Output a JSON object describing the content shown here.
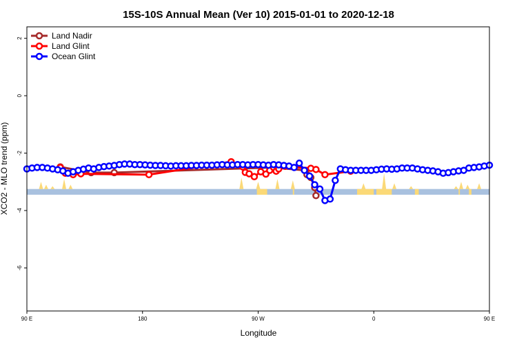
{
  "chart_data": {
    "type": "line",
    "title": "15S-10S Annual Mean (Ver 10)   2015-01-01 to 2020-12-18",
    "xlabel": "Longitude",
    "ylabel": "XCO2 - MLO trend (ppm)",
    "xlim": [
      90,
      450
    ],
    "ylim": [
      -7.5,
      2.4
    ],
    "xticks": [
      {
        "value": 90,
        "label": "90 E"
      },
      {
        "value": 180,
        "label": "180"
      },
      {
        "value": 270,
        "label": "90 W"
      },
      {
        "value": 360,
        "label": "0"
      },
      {
        "value": 450,
        "label": "90 E"
      }
    ],
    "yticks": [
      {
        "value": 2,
        "label": "2"
      },
      {
        "value": 0,
        "label": "0"
      },
      {
        "value": -2,
        "label": "-2"
      },
      {
        "value": -4,
        "label": "-4"
      },
      {
        "value": -6,
        "label": "-6"
      }
    ],
    "legend_position": "top-left",
    "land_band": {
      "y_top": -3.25,
      "y_bottom": -3.45,
      "ocean_color": "#a9c1df",
      "land_color": "#fbd977"
    },
    "land_regions": [
      [
        269,
        277
      ],
      [
        297,
        298
      ],
      [
        347,
        360
      ],
      [
        362,
        374
      ],
      [
        392,
        395
      ],
      [
        426,
        427
      ],
      [
        434,
        436
      ]
    ],
    "land_spikes": [
      [
        101,
        -3.0
      ],
      [
        105,
        -3.1
      ],
      [
        110,
        -3.15
      ],
      [
        119,
        -2.9
      ],
      [
        124,
        -3.1
      ],
      [
        257,
        -2.85
      ],
      [
        270,
        -3.0
      ],
      [
        285,
        -2.9
      ],
      [
        297,
        -2.95
      ],
      [
        352,
        -3.05
      ],
      [
        368,
        -2.7
      ],
      [
        376,
        -3.05
      ],
      [
        389,
        -3.15
      ],
      [
        424,
        -3.15
      ],
      [
        428,
        -3.0
      ],
      [
        433,
        -3.1
      ],
      [
        442,
        -3.05
      ]
    ],
    "series": [
      {
        "name": "Land Nadir",
        "color": "#a52a2a",
        "x": [
          116,
          140,
          158,
          281,
          307,
          308,
          311,
          314,
          315
        ],
        "y": [
          -2.48,
          -2.68,
          -2.68,
          -2.5,
          -2.6,
          -2.75,
          -2.85,
          -3.2,
          -3.48
        ]
      },
      {
        "name": "Land Glint",
        "color": "#ff0000",
        "x": [
          116,
          120,
          126,
          132,
          185,
          249,
          258,
          260,
          263,
          267,
          272,
          276,
          279,
          282,
          284,
          286,
          291,
          311,
          315,
          322,
          342
        ],
        "y": [
          -2.5,
          -2.7,
          -2.75,
          -2.72,
          -2.75,
          -2.3,
          -2.48,
          -2.67,
          -2.72,
          -2.82,
          -2.65,
          -2.73,
          -2.6,
          -2.5,
          -2.63,
          -2.55,
          -2.46,
          -2.53,
          -2.57,
          -2.75,
          -2.63
        ]
      },
      {
        "name": "Ocean Glint",
        "color": "#0000ff",
        "x": [
          90,
          94,
          98,
          102,
          106,
          110,
          114,
          118,
          122,
          126,
          130,
          134,
          138,
          142,
          146,
          150,
          154,
          158,
          162,
          166,
          170,
          174,
          178,
          182,
          186,
          190,
          194,
          198,
          202,
          206,
          210,
          214,
          218,
          222,
          226,
          230,
          234,
          238,
          242,
          246,
          250,
          254,
          258,
          262,
          266,
          270,
          274,
          278,
          282,
          286,
          290,
          294,
          298,
          302,
          306,
          310,
          314,
          318,
          322,
          326,
          330,
          334,
          338,
          342,
          346,
          350,
          354,
          358,
          362,
          366,
          370,
          374,
          378,
          382,
          386,
          390,
          394,
          398,
          402,
          406,
          410,
          414,
          418,
          422,
          426,
          430,
          434,
          438,
          442,
          446,
          450
        ],
        "y": [
          -2.55,
          -2.52,
          -2.5,
          -2.5,
          -2.52,
          -2.55,
          -2.58,
          -2.62,
          -2.7,
          -2.65,
          -2.6,
          -2.56,
          -2.52,
          -2.55,
          -2.5,
          -2.47,
          -2.45,
          -2.43,
          -2.4,
          -2.38,
          -2.38,
          -2.4,
          -2.4,
          -2.41,
          -2.42,
          -2.43,
          -2.43,
          -2.44,
          -2.45,
          -2.44,
          -2.44,
          -2.44,
          -2.43,
          -2.43,
          -2.42,
          -2.42,
          -2.42,
          -2.41,
          -2.4,
          -2.41,
          -2.41,
          -2.4,
          -2.4,
          -2.41,
          -2.4,
          -2.4,
          -2.41,
          -2.42,
          -2.4,
          -2.41,
          -2.43,
          -2.45,
          -2.5,
          -2.35,
          -2.6,
          -2.8,
          -3.1,
          -3.25,
          -3.65,
          -3.6,
          -2.95,
          -2.55,
          -2.58,
          -2.6,
          -2.6,
          -2.6,
          -2.6,
          -2.6,
          -2.58,
          -2.56,
          -2.55,
          -2.56,
          -2.55,
          -2.52,
          -2.52,
          -2.52,
          -2.55,
          -2.58,
          -2.6,
          -2.62,
          -2.65,
          -2.7,
          -2.68,
          -2.65,
          -2.62,
          -2.6,
          -2.52,
          -2.5,
          -2.48,
          -2.45,
          -2.42
        ]
      }
    ]
  }
}
